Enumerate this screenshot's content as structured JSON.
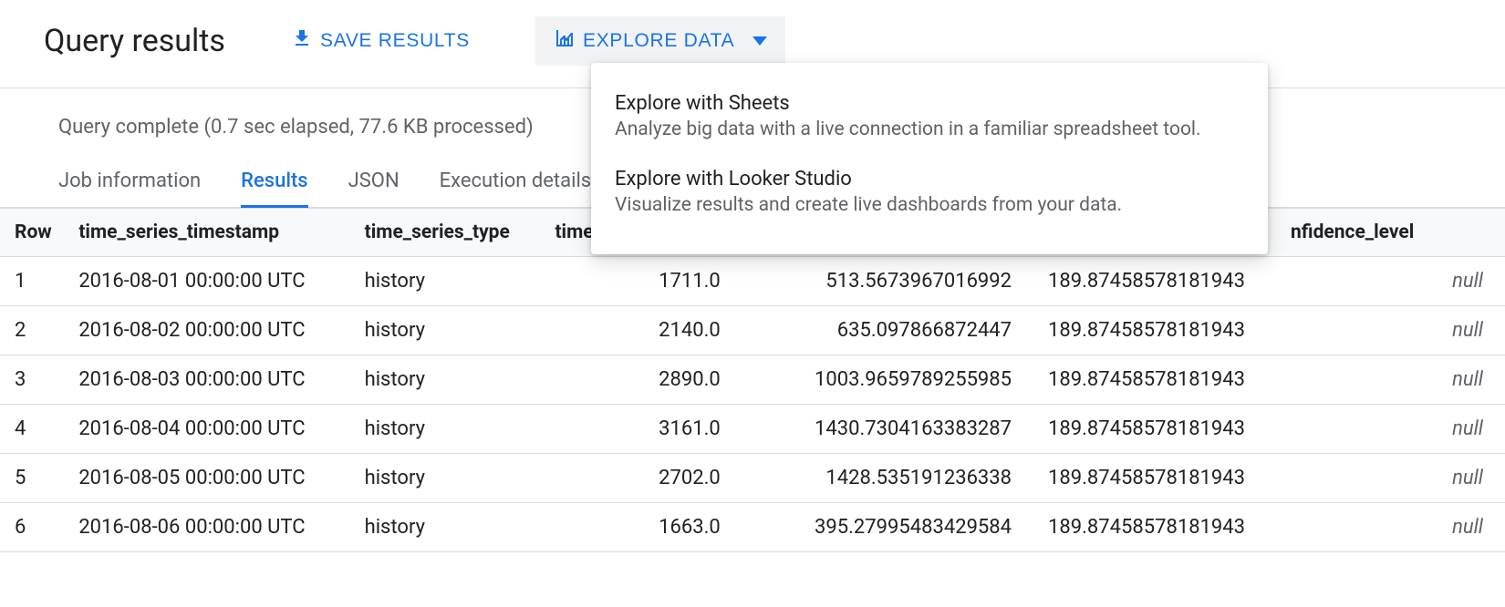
{
  "header": {
    "title": "Query results",
    "save_results_label": "Save Results",
    "explore_data_label": "Explore Data"
  },
  "status": {
    "text": "Query complete (0.7 sec elapsed, 77.6 KB processed)"
  },
  "tabs": [
    {
      "label": "Job information",
      "active": false
    },
    {
      "label": "Results",
      "active": true
    },
    {
      "label": "JSON",
      "active": false
    },
    {
      "label": "Execution details",
      "active": false
    }
  ],
  "dropdown": {
    "items": [
      {
        "title": "Explore with Sheets",
        "desc": "Analyze big data with a live connection in a familiar spreadsheet tool."
      },
      {
        "title": "Explore with Looker Studio",
        "desc": "Visualize results and create live dashboards from your data."
      }
    ]
  },
  "table": {
    "columns": [
      "Row",
      "time_series_timestamp",
      "time_series_type",
      "time_",
      "",
      "",
      "nfidence_level"
    ],
    "col_classes": [
      "col-row",
      "col-ts",
      "col-type",
      "col-num3",
      "col-num4",
      "col-num5",
      "col-conf"
    ],
    "rows": [
      {
        "row": "1",
        "ts": "2016-08-01 00:00:00 UTC",
        "type": "history",
        "v3": "1711.0",
        "v4": "513.5673967016992",
        "v5": "189.87458578181943",
        "conf": "null"
      },
      {
        "row": "2",
        "ts": "2016-08-02 00:00:00 UTC",
        "type": "history",
        "v3": "2140.0",
        "v4": "635.097866872447",
        "v5": "189.87458578181943",
        "conf": "null"
      },
      {
        "row": "3",
        "ts": "2016-08-03 00:00:00 UTC",
        "type": "history",
        "v3": "2890.0",
        "v4": "1003.9659789255985",
        "v5": "189.87458578181943",
        "conf": "null"
      },
      {
        "row": "4",
        "ts": "2016-08-04 00:00:00 UTC",
        "type": "history",
        "v3": "3161.0",
        "v4": "1430.7304163383287",
        "v5": "189.87458578181943",
        "conf": "null"
      },
      {
        "row": "5",
        "ts": "2016-08-05 00:00:00 UTC",
        "type": "history",
        "v3": "2702.0",
        "v4": "1428.535191236338",
        "v5": "189.87458578181943",
        "conf": "null"
      },
      {
        "row": "6",
        "ts": "2016-08-06 00:00:00 UTC",
        "type": "history",
        "v3": "1663.0",
        "v4": "395.27995483429584",
        "v5": "189.87458578181943",
        "conf": "null"
      }
    ]
  },
  "colors": {
    "accent": "#1a73e8",
    "text_primary": "#202124",
    "text_secondary": "#5f6368",
    "border": "#dadce0",
    "surface_variant": "#f1f3f4",
    "header_bg": "#f8f9fa"
  }
}
